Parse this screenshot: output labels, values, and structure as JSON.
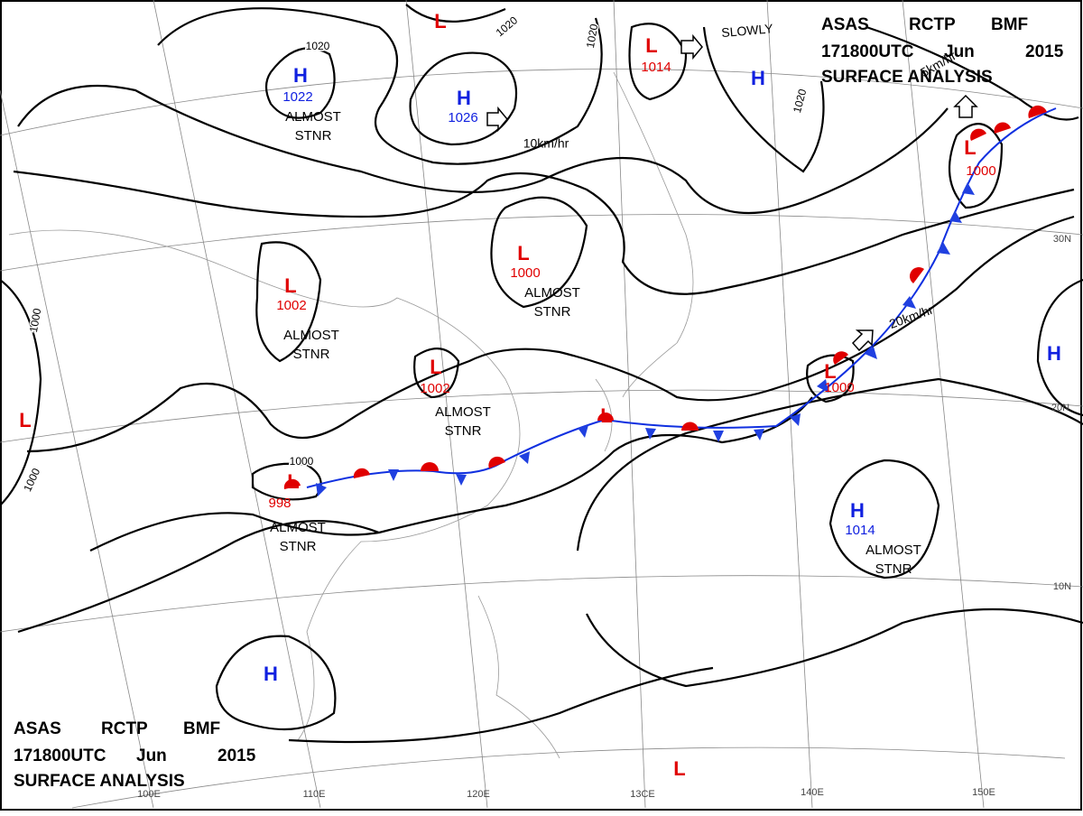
{
  "header": {
    "product": "ASAS",
    "station": "RCTP",
    "office": "BMF",
    "time": "171800UTC",
    "month": "Jun",
    "year": "2015",
    "name": "SURFACE ANALYSIS"
  },
  "pressure_systems": [
    {
      "symbol": "L"
    },
    {
      "symbol": "H",
      "value": 1022
    },
    {
      "symbol": "H",
      "value": 1026
    },
    {
      "symbol": "L",
      "value": 1014
    },
    {
      "symbol": "H"
    },
    {
      "symbol": "L",
      "value": 1000
    },
    {
      "symbol": "L",
      "value": 1002
    },
    {
      "symbol": "L",
      "value": 1002
    },
    {
      "symbol": "L"
    },
    {
      "symbol": "L",
      "value": 998
    },
    {
      "symbol": "L",
      "value": 1000
    },
    {
      "symbol": "L",
      "value": 1000
    },
    {
      "symbol": "H"
    },
    {
      "symbol": "L"
    },
    {
      "symbol": "H",
      "value": 1014
    },
    {
      "symbol": "H"
    },
    {
      "symbol": "L"
    }
  ],
  "isobar_labels": [
    1020,
    1020,
    1020,
    1020,
    1000,
    1000,
    1000
  ],
  "motion_labels": [
    "SLOWLY",
    "10km/hr",
    "20km/hr",
    "5km/hr"
  ],
  "stationary_note": {
    "line1": "ALMOST",
    "line2": "STNR"
  },
  "latitude_labels": [
    "30N",
    "20N",
    "10N"
  ],
  "longitude_labels": [
    "100E",
    "110E",
    "120E",
    "13CE",
    "140E",
    "150E"
  ]
}
